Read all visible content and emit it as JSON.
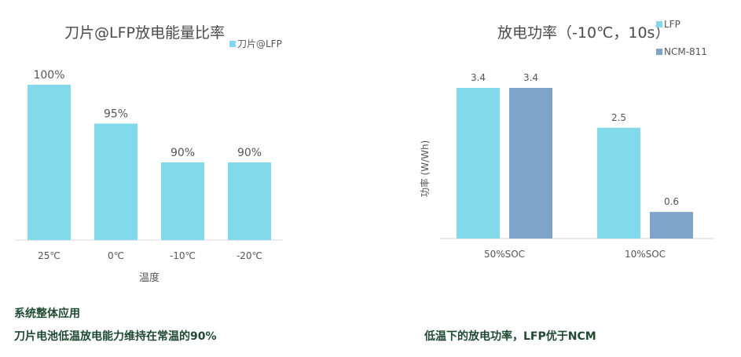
{
  "left_chart": {
    "title": "刀片@LFP放电能量比率",
    "legend": "刀片@LFP"
  },
  "right_chart": {
    "title": "放电功率（-10℃，10s）",
    "legend": [
      "LFP",
      "NCM-811"
    ]
  },
  "captions": {
    "system_heading": "系统整体应用",
    "left_summary": "刀片电池低温放电能力维持在常温的90%",
    "right_summary": "低温下的放电功率，LFP优于NCM"
  },
  "colors": {
    "lfp": "#82d9ea",
    "ncm": "#7ea5c9",
    "text": "#555555",
    "axis": "#d9d9d9",
    "caption": "#1f4a30"
  },
  "chart_data": [
    {
      "type": "bar",
      "title": "刀片@LFP放电能量比率",
      "xlabel": "温度",
      "ylabel": "",
      "categories": [
        "25℃",
        "0℃",
        "-10℃",
        "-20℃"
      ],
      "series": [
        {
          "name": "刀片@LFP",
          "values": [
            100,
            95,
            90,
            90
          ],
          "labels": [
            "100%",
            "95%",
            "90%",
            "90%"
          ]
        }
      ],
      "ylim": [
        80,
        100
      ],
      "grid": false,
      "legend_position": "top-right"
    },
    {
      "type": "bar",
      "title": "放电功率（-10℃，10s）",
      "xlabel": "",
      "ylabel": "功率 (W/Wh)",
      "categories": [
        "50%SOC",
        "10%SOC"
      ],
      "series": [
        {
          "name": "LFP",
          "values": [
            3.4,
            2.5
          ],
          "labels": [
            "3.4",
            "2.5"
          ]
        },
        {
          "name": "NCM-811",
          "values": [
            3.4,
            0.6
          ],
          "labels": [
            "3.4",
            "0.6"
          ]
        }
      ],
      "ylim": [
        0,
        3.4
      ],
      "grid": false,
      "legend_position": "top-right"
    }
  ]
}
